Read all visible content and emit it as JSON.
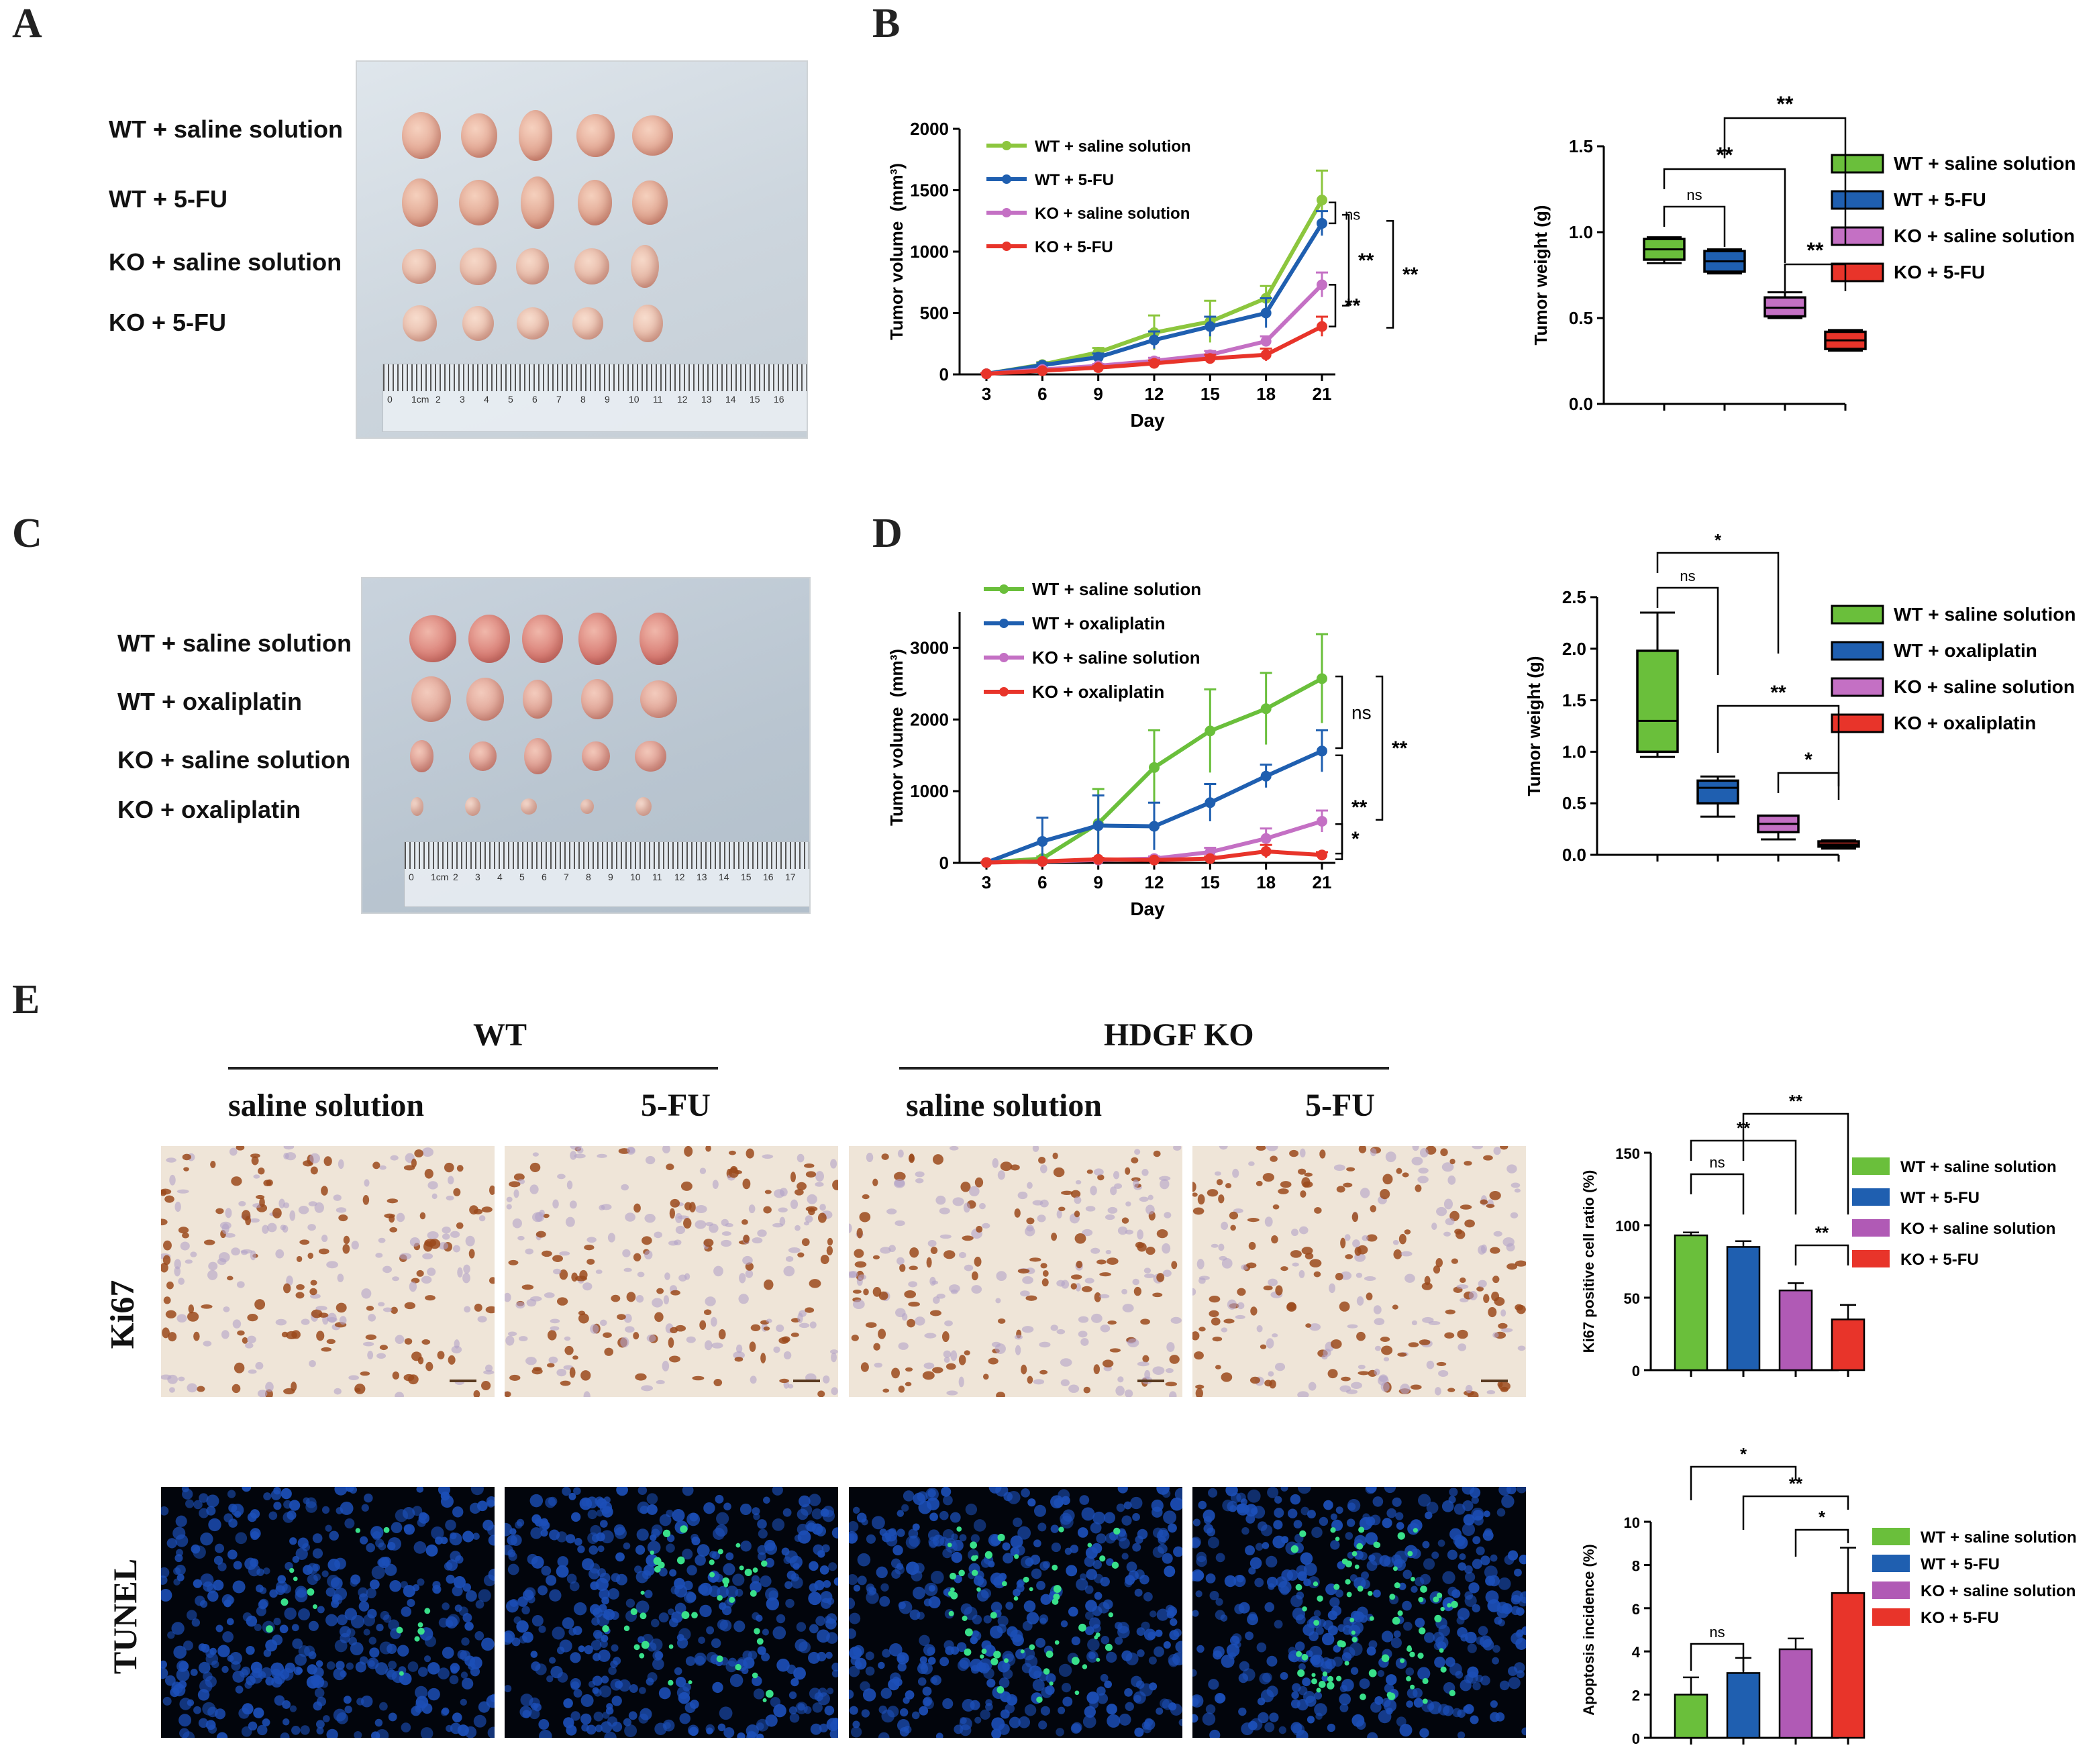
{
  "panels": {
    "A": "A",
    "B": "B",
    "C": "C",
    "D": "D",
    "E": "E"
  },
  "panelA": {
    "groups": [
      "WT + saline solution",
      "WT + 5-FU",
      "KO + saline solution",
      "KO + 5-FU"
    ],
    "ruler_labels": [
      "0",
      "1cm",
      "2",
      "3",
      "4",
      "5",
      "6",
      "7",
      "8",
      "9",
      "10",
      "11",
      "12",
      "13",
      "14",
      "15",
      "16"
    ]
  },
  "panelC": {
    "groups": [
      "WT + saline solution",
      "WT + oxaliplatin",
      "KO + saline solution",
      "KO + oxaliplatin"
    ],
    "ruler_labels": [
      "0",
      "1cm",
      "2",
      "3",
      "4",
      "5",
      "6",
      "7",
      "8",
      "9",
      "10",
      "11",
      "12",
      "13",
      "14",
      "15",
      "16",
      "17"
    ]
  },
  "panelE": {
    "wt": "WT",
    "ko": "HDGF KO",
    "col_saline": "saline solution",
    "col_5fu": "5-FU",
    "row_ki67": "Ki67",
    "row_tunel": "TUNEL"
  },
  "colors": {
    "green": "#8cc63e",
    "green2": "#6abf3b",
    "blue": "#1f5fb0",
    "pink": "#c470c4",
    "red": "#e8342a",
    "purple": "#b05ab5"
  },
  "chart_data": [
    {
      "id": "B-line",
      "type": "line",
      "xlabel": "Day",
      "ylabel": "Tumor volume  (mm³)",
      "ylim": [
        0,
        2000
      ],
      "yticks": [
        0,
        500,
        1000,
        1500,
        2000
      ],
      "x": [
        3,
        6,
        9,
        12,
        15,
        18,
        21
      ],
      "legend": [
        "WT + saline solution",
        "WT + 5-FU",
        "KO + saline solution",
        "KO + 5-FU"
      ],
      "series": [
        {
          "name": "WT + saline solution",
          "color": "#8cc63e",
          "values": [
            5,
            80,
            180,
            340,
            430,
            620,
            1420
          ],
          "err": [
            5,
            20,
            35,
            140,
            170,
            100,
            240
          ]
        },
        {
          "name": "WT + 5-FU",
          "color": "#1f5fb0",
          "values": [
            5,
            75,
            140,
            280,
            390,
            500,
            1230
          ],
          "err": [
            5,
            20,
            30,
            70,
            80,
            120,
            100
          ]
        },
        {
          "name": "KO + saline solution",
          "color": "#c470c4",
          "values": [
            5,
            40,
            70,
            110,
            160,
            270,
            730
          ],
          "err": [
            5,
            10,
            15,
            25,
            30,
            40,
            100
          ]
        },
        {
          "name": "KO + 5-FU",
          "color": "#e8342a",
          "values": [
            5,
            30,
            55,
            90,
            130,
            160,
            390
          ],
          "err": [
            5,
            10,
            15,
            25,
            30,
            50,
            80
          ]
        }
      ],
      "annotations": [
        "ns",
        "**",
        "**",
        "**"
      ]
    },
    {
      "id": "B-box",
      "type": "box",
      "ylabel": "Tumor weight (g)",
      "ylim": [
        0,
        1.5
      ],
      "yticks": [
        "0.0",
        "0.5",
        "1.0",
        "1.5"
      ],
      "legend": [
        "WT + saline solution",
        "WT + 5-FU",
        "KO + saline solution",
        "KO + 5-FU"
      ],
      "boxes": [
        {
          "name": "WT + saline solution",
          "color": "#6abf3b",
          "min": 0.82,
          "q1": 0.84,
          "med": 0.9,
          "q3": 0.96,
          "max": 0.97
        },
        {
          "name": "WT + 5-FU",
          "color": "#1f5fb0",
          "min": 0.76,
          "q1": 0.77,
          "med": 0.83,
          "q3": 0.89,
          "max": 0.9
        },
        {
          "name": "KO + saline solution",
          "color": "#c470c4",
          "min": 0.5,
          "q1": 0.51,
          "med": 0.56,
          "q3": 0.62,
          "max": 0.65
        },
        {
          "name": "KO + 5-FU",
          "color": "#e8342a",
          "min": 0.31,
          "q1": 0.32,
          "med": 0.37,
          "q3": 0.42,
          "max": 0.43
        }
      ],
      "annotations": [
        "ns",
        "**",
        "**",
        "**"
      ]
    },
    {
      "id": "D-line",
      "type": "line",
      "xlabel": "Day",
      "ylabel": "Tumor volume  (mm³)",
      "ylim": [
        0,
        3500
      ],
      "yticks": [
        0,
        1000,
        2000,
        3000
      ],
      "x": [
        3,
        6,
        9,
        12,
        15,
        18,
        21
      ],
      "legend": [
        "WT + saline solution",
        "WT + oxaliplatin",
        "KO + saline solution",
        "KO + oxaliplatin"
      ],
      "series": [
        {
          "name": "WT + saline solution",
          "color": "#6abf3b",
          "values": [
            5,
            60,
            550,
            1330,
            1840,
            2150,
            2570
          ],
          "err": [
            5,
            30,
            480,
            520,
            580,
            500,
            620
          ]
        },
        {
          "name": "WT + oxaliplatin",
          "color": "#1f5fb0",
          "values": [
            5,
            300,
            520,
            510,
            840,
            1210,
            1560
          ],
          "err": [
            5,
            330,
            420,
            330,
            260,
            160,
            290
          ]
        },
        {
          "name": "KO + saline solution",
          "color": "#c470c4",
          "values": [
            5,
            20,
            40,
            60,
            150,
            340,
            580
          ],
          "err": [
            5,
            10,
            20,
            30,
            60,
            140,
            150
          ]
        },
        {
          "name": "KO + oxaliplatin",
          "color": "#e8342a",
          "values": [
            5,
            20,
            50,
            40,
            60,
            160,
            110
          ],
          "err": [
            5,
            10,
            20,
            20,
            30,
            90,
            40
          ]
        }
      ],
      "annotations": [
        "ns",
        "**",
        "**",
        "*"
      ]
    },
    {
      "id": "D-box",
      "type": "box",
      "ylabel": "Tumor weight (g)",
      "ylim": [
        0,
        2.5
      ],
      "yticks": [
        "0.0",
        "0.5",
        "1.0",
        "1.5",
        "2.0",
        "2.5"
      ],
      "legend": [
        "WT + saline solution",
        "WT + oxaliplatin",
        "KO + saline solution",
        "KO + oxaliplatin"
      ],
      "boxes": [
        {
          "name": "WT + saline solution",
          "color": "#6abf3b",
          "min": 0.95,
          "q1": 1.0,
          "med": 1.3,
          "q3": 1.98,
          "max": 2.35
        },
        {
          "name": "WT + oxaliplatin",
          "color": "#1f5fb0",
          "min": 0.37,
          "q1": 0.5,
          "med": 0.65,
          "q3": 0.72,
          "max": 0.76
        },
        {
          "name": "KO + saline solution",
          "color": "#c470c4",
          "min": 0.15,
          "q1": 0.22,
          "med": 0.3,
          "q3": 0.38,
          "max": 0.38
        },
        {
          "name": "KO + oxaliplatin",
          "color": "#e8342a",
          "min": 0.06,
          "q1": 0.08,
          "med": 0.1,
          "q3": 0.13,
          "max": 0.14
        }
      ],
      "annotations": [
        "ns",
        "*",
        "**",
        "*"
      ]
    },
    {
      "id": "E-ki67",
      "type": "bar",
      "ylabel": "Ki67 positive cell ratio (%)",
      "ylim": [
        0,
        150
      ],
      "yticks": [
        0,
        50,
        100,
        150
      ],
      "categories": [
        "WT + saline solution",
        "WT + 5-FU",
        "KO + saline solution",
        "KO + 5-FU"
      ],
      "colors": [
        "#6abf3b",
        "#1f5fb0",
        "#b05ab5",
        "#e8342a"
      ],
      "values": [
        93,
        85,
        55,
        35
      ],
      "err": [
        2,
        4,
        5,
        10
      ],
      "annotations": [
        "ns",
        "**",
        "**",
        "**"
      ]
    },
    {
      "id": "E-tunel",
      "type": "bar",
      "ylabel": "Apoptosis incidence (%)",
      "ylim": [
        0,
        10
      ],
      "yticks": [
        0,
        2,
        4,
        6,
        8,
        10
      ],
      "categories": [
        "WT + saline solution",
        "WT + 5-FU",
        "KO + saline solution",
        "KO + 5-FU"
      ],
      "colors": [
        "#6abf3b",
        "#1f5fb0",
        "#b05ab5",
        "#e8342a"
      ],
      "values": [
        2.0,
        3.0,
        4.1,
        6.7
      ],
      "err": [
        0.8,
        0.7,
        0.5,
        2.1
      ],
      "annotations": [
        "ns",
        "*",
        "**",
        "*"
      ]
    }
  ]
}
